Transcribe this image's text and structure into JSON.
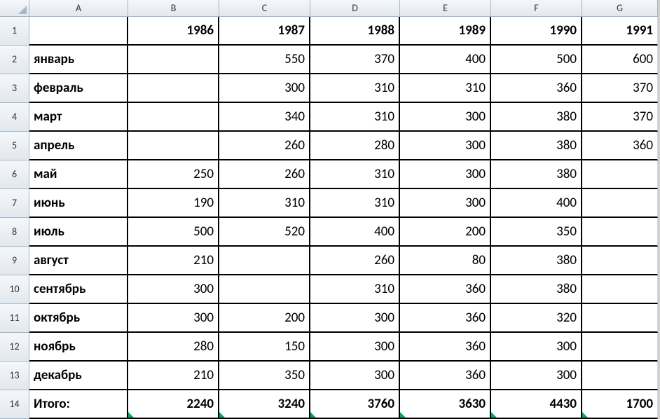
{
  "colHeaders": [
    "A",
    "B",
    "C",
    "D",
    "E",
    "F",
    "G"
  ],
  "rowHeaders": [
    "1",
    "2",
    "3",
    "4",
    "5",
    "6",
    "7",
    "8",
    "9",
    "10",
    "11",
    "12",
    "13",
    "14"
  ],
  "years": [
    "1986",
    "1987",
    "1988",
    "1989",
    "1990",
    "1991"
  ],
  "months": [
    {
      "name": "январь",
      "v": [
        "",
        "550",
        "370",
        "400",
        "500",
        "600"
      ]
    },
    {
      "name": "февраль",
      "v": [
        "",
        "300",
        "310",
        "310",
        "360",
        "370"
      ]
    },
    {
      "name": "март",
      "v": [
        "",
        "340",
        "310",
        "300",
        "380",
        "370"
      ]
    },
    {
      "name": "апрель",
      "v": [
        "",
        "260",
        "280",
        "300",
        "380",
        "360"
      ]
    },
    {
      "name": "май",
      "v": [
        "250",
        "260",
        "310",
        "300",
        "380",
        ""
      ]
    },
    {
      "name": "июнь",
      "v": [
        "190",
        "310",
        "310",
        "300",
        "400",
        ""
      ]
    },
    {
      "name": "июль",
      "v": [
        "500",
        "520",
        "400",
        "200",
        "350",
        ""
      ]
    },
    {
      "name": "август",
      "v": [
        "210",
        "",
        "260",
        "80",
        "380",
        ""
      ]
    },
    {
      "name": "сентябрь",
      "v": [
        "300",
        "",
        "310",
        "360",
        "380",
        ""
      ]
    },
    {
      "name": "октябрь",
      "v": [
        "300",
        "200",
        "300",
        "360",
        "320",
        ""
      ]
    },
    {
      "name": "ноябрь",
      "v": [
        "280",
        "150",
        "300",
        "360",
        "300",
        ""
      ]
    },
    {
      "name": "декабрь",
      "v": [
        "210",
        "350",
        "300",
        "360",
        "300",
        ""
      ]
    }
  ],
  "totalLabel": "Итого:",
  "totals": [
    "2240",
    "3240",
    "3760",
    "3630",
    "4430",
    "1700"
  ],
  "colors": {
    "headerGradTop": "#f5f7fa",
    "headerGradBot": "#e3e8ee",
    "headerBorder": "#9eb6ce",
    "cellBorder": "#000000",
    "background": "#ffffff",
    "marker": "#00b050"
  }
}
